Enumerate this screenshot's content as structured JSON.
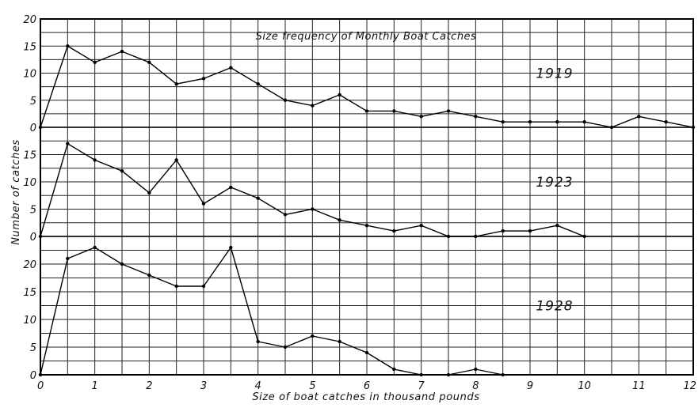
{
  "chart_data": {
    "type": "line",
    "title": "Size frequency of Monthly Boat Catches",
    "xlabel": "Size of boat catches in thousand pounds",
    "ylabel": "Number of catches",
    "x": [
      0,
      0.5,
      1,
      1.5,
      2,
      2.5,
      3,
      3.5,
      4,
      4.5,
      5,
      5.5,
      6,
      6.5,
      7,
      7.5,
      8,
      8.5,
      9,
      9.5,
      10,
      10.5,
      11,
      11.5,
      12
    ],
    "xlim": [
      0,
      12
    ],
    "xticks": [
      "0",
      "1",
      "2",
      "3",
      "4",
      "5",
      "6",
      "7",
      "8",
      "9",
      "10",
      "11",
      "12"
    ],
    "grid": true,
    "panels": [
      {
        "name": "1919",
        "ylim": [
          0,
          20
        ],
        "yticks": [
          "0",
          "5",
          "10",
          "15",
          "20"
        ],
        "values": [
          0,
          15,
          12,
          14,
          12,
          8,
          9,
          11,
          8,
          5,
          4,
          6,
          3,
          3,
          2,
          3,
          2,
          1,
          1,
          1,
          1,
          0,
          2,
          1,
          0
        ]
      },
      {
        "name": "1923",
        "ylim": [
          0,
          20
        ],
        "yticks": [
          "0",
          "5",
          "10",
          "15"
        ],
        "values": [
          0,
          17,
          14,
          12,
          8,
          14,
          6,
          9,
          7,
          4,
          5,
          3,
          2,
          1,
          2,
          0,
          0,
          1,
          1,
          2,
          0
        ]
      },
      {
        "name": "1928",
        "ylim": [
          0,
          25
        ],
        "yticks": [
          "0",
          "5",
          "10",
          "15",
          "20"
        ],
        "values": [
          0,
          21,
          23,
          20,
          18,
          16,
          16,
          23,
          6,
          5,
          7,
          6,
          4,
          1,
          0,
          0,
          1,
          0
        ]
      }
    ]
  }
}
